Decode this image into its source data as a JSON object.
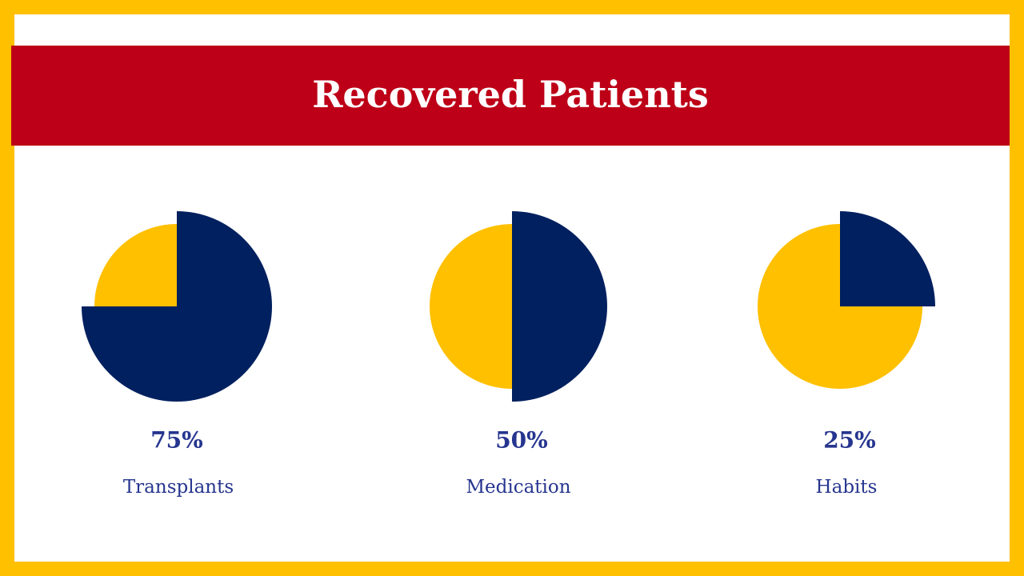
{
  "header": {
    "title": "Recovered Patients"
  },
  "chart_data": [
    {
      "type": "pie",
      "label": "Transplants",
      "values": [
        75,
        25
      ],
      "value_label": "75%",
      "colors": [
        "#00205f",
        "#ffc000"
      ]
    },
    {
      "type": "pie",
      "label": "Medication",
      "values": [
        50,
        50
      ],
      "value_label": "50%",
      "colors": [
        "#00205f",
        "#ffc000"
      ]
    },
    {
      "type": "pie",
      "label": "Habits",
      "values": [
        25,
        75
      ],
      "value_label": "25%",
      "colors": [
        "#00205f",
        "#ffc000"
      ]
    }
  ]
}
